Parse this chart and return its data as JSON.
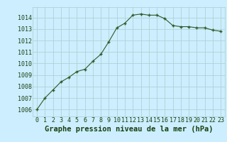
{
  "x": [
    0,
    1,
    2,
    3,
    4,
    5,
    6,
    7,
    8,
    9,
    10,
    11,
    12,
    13,
    14,
    15,
    16,
    17,
    18,
    19,
    20,
    21,
    22,
    23
  ],
  "y": [
    1006.0,
    1007.0,
    1007.7,
    1008.4,
    1008.8,
    1009.3,
    1009.5,
    1010.2,
    1010.8,
    1011.9,
    1013.1,
    1013.5,
    1014.2,
    1014.3,
    1014.2,
    1014.2,
    1013.9,
    1013.3,
    1013.2,
    1013.2,
    1013.1,
    1013.1,
    1012.9,
    1012.8
  ],
  "line_color": "#2d5a27",
  "marker": "+",
  "markersize": 3.5,
  "markeredgewidth": 1.0,
  "linewidth": 0.8,
  "bg_color": "#cceeff",
  "grid_color": "#aacccc",
  "xlabel": "Graphe pression niveau de la mer (hPa)",
  "xlabel_fontsize": 7.5,
  "xlabel_color": "#1a4010",
  "tick_color": "#1a4010",
  "tick_fontsize": 6.0,
  "ytick_labels": [
    "1006",
    "1007",
    "1008",
    "1009",
    "1010",
    "1011",
    "1012",
    "1013",
    "1014"
  ],
  "ylim": [
    1005.4,
    1014.9
  ],
  "xlim": [
    -0.5,
    23.5
  ],
  "xtick_labels": [
    "0",
    "1",
    "2",
    "3",
    "4",
    "5",
    "6",
    "7",
    "8",
    "9",
    "10",
    "11",
    "12",
    "13",
    "14",
    "15",
    "16",
    "17",
    "18",
    "19",
    "20",
    "21",
    "22",
    "23"
  ]
}
